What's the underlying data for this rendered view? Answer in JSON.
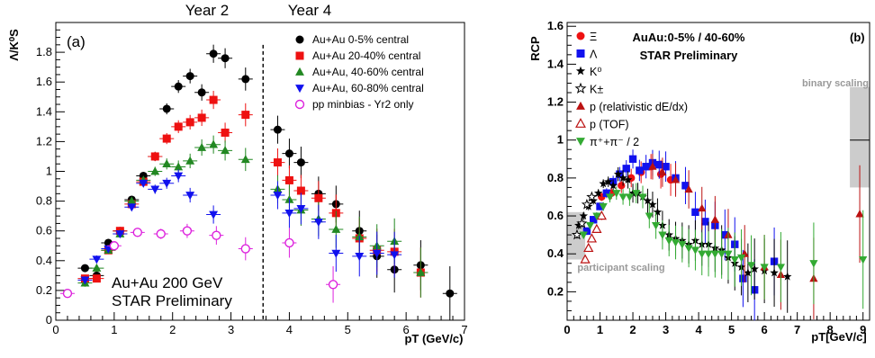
{
  "page": {
    "year2_label": "Year 2",
    "year4_label": "Year 4"
  },
  "chart_data": [
    {
      "type": "scatter",
      "panel_label": "(a)",
      "ylabel": "Λ/K⁰S",
      "xlabel": "pT (GeV/c)",
      "xlim": [
        0,
        7
      ],
      "ylim": [
        0,
        2
      ],
      "x_ticks": [
        "0",
        "1",
        "2",
        "3",
        "4",
        "5",
        "6",
        "7"
      ],
      "y_ticks": [
        "0",
        "0.2",
        "0.4",
        "0.6",
        "0.8",
        "1",
        "1.2",
        "1.4",
        "1.6",
        "1.8"
      ],
      "divider_x": 3.55,
      "grid": false,
      "legend_position": "top-right",
      "annotation_lines": [
        "Au+Au 200 GeV",
        "STAR Preliminary"
      ],
      "series": [
        {
          "name": "Au+Au 0-5% central",
          "color": "#000000",
          "marker": "circle",
          "x": [
            0.5,
            0.7,
            0.9,
            1.1,
            1.3,
            1.5,
            1.7,
            1.9,
            2.1,
            2.3,
            2.5,
            2.7,
            2.9,
            3.25,
            3.8,
            4.0,
            4.2,
            4.5,
            4.8,
            5.2,
            5.5,
            5.8,
            6.25,
            6.75
          ],
          "y": [
            0.35,
            0.3,
            0.52,
            0.6,
            0.81,
            0.97,
            1.1,
            1.42,
            1.57,
            1.64,
            1.53,
            1.79,
            1.76,
            1.62,
            1.28,
            1.12,
            1.06,
            0.85,
            0.78,
            0.6,
            0.43,
            0.34,
            0.37,
            0.18
          ]
        },
        {
          "name": "Au+Au 20-40% central",
          "color": "#ee1111",
          "marker": "square",
          "x": [
            0.5,
            0.7,
            0.9,
            1.1,
            1.3,
            1.5,
            1.7,
            1.9,
            2.1,
            2.3,
            2.5,
            2.7,
            2.9,
            3.25,
            3.8,
            4.0,
            4.2,
            4.5,
            4.8,
            5.2,
            5.5,
            5.8,
            6.25
          ],
          "y": [
            0.28,
            0.28,
            0.47,
            0.6,
            0.78,
            0.93,
            1.1,
            1.22,
            1.3,
            1.33,
            1.36,
            1.48,
            1.26,
            1.38,
            1.06,
            0.94,
            0.87,
            0.82,
            0.72,
            0.55,
            0.47,
            0.46,
            0.32
          ]
        },
        {
          "name": "Au+Au, 40-60% central",
          "color": "#228822",
          "marker": "triangle-up",
          "x": [
            0.5,
            0.7,
            0.9,
            1.1,
            1.3,
            1.5,
            1.7,
            1.9,
            2.1,
            2.3,
            2.5,
            2.7,
            2.9,
            3.25,
            3.8,
            4.0,
            4.2,
            4.5,
            4.8,
            5.2,
            5.5,
            5.8,
            6.25
          ],
          "y": [
            0.25,
            0.35,
            0.47,
            0.58,
            0.8,
            0.94,
            1.0,
            1.05,
            1.03,
            1.07,
            1.16,
            1.18,
            1.14,
            1.08,
            0.88,
            0.81,
            0.74,
            0.68,
            0.61,
            0.56,
            0.5,
            0.53,
            0.32
          ]
        },
        {
          "name": "Au+Au, 60-80% central",
          "color": "#1111ee",
          "marker": "triangle-down",
          "x": [
            0.5,
            0.7,
            0.9,
            1.1,
            1.3,
            1.5,
            1.7,
            1.9,
            2.1,
            2.3,
            2.7,
            3.8,
            4.0,
            4.2,
            4.5,
            4.8,
            5.2,
            5.5,
            5.8
          ],
          "y": [
            0.27,
            0.41,
            0.48,
            0.58,
            0.76,
            0.92,
            0.88,
            0.92,
            0.97,
            0.84,
            0.71,
            0.84,
            0.72,
            0.75,
            0.66,
            0.45,
            0.43,
            0.45,
            0.44
          ]
        },
        {
          "name": "pp minbias - Yr2 only",
          "color": "#dd22dd",
          "marker": "open-circle",
          "x": [
            0.2,
            1.0,
            1.4,
            1.8,
            2.25,
            2.75,
            3.25,
            4.0,
            4.75
          ],
          "y": [
            0.18,
            0.5,
            0.59,
            0.58,
            0.6,
            0.57,
            0.48,
            0.52,
            0.24
          ]
        }
      ]
    },
    {
      "type": "scatter",
      "panel_label": "(b)",
      "title": "AuAu:0-5% / 40-60%",
      "subtitle": "STAR Preliminary",
      "ylabel": "RCP",
      "xlabel": "pT[GeV/c]",
      "xlim": [
        0,
        9.2
      ],
      "ylim": [
        0.05,
        1.62
      ],
      "x_ticks": [
        "0",
        "1",
        "2",
        "3",
        "4",
        "5",
        "6",
        "7",
        "8",
        "9"
      ],
      "y_ticks": [
        "0.2",
        "0.4",
        "0.6",
        "0.8",
        "1",
        "1.2",
        "1.4",
        "1.6"
      ],
      "grid": false,
      "legend_position": "top-left",
      "binary_scaling_label": "binary scaling",
      "participant_scaling_label": "participant scaling",
      "series": [
        {
          "name": "Ξ",
          "color": "#ee1111",
          "marker": "circle",
          "x": [
            1.05,
            1.35,
            1.65,
            1.95,
            2.25,
            2.55,
            2.85,
            3.15
          ],
          "y": [
            0.7,
            0.72,
            0.76,
            0.8,
            0.83,
            0.86,
            0.82,
            0.79
          ]
        },
        {
          "name": "Λ",
          "color": "#1111ee",
          "marker": "square",
          "x": [
            0.6,
            0.8,
            1.0,
            1.2,
            1.4,
            1.6,
            1.8,
            2.0,
            2.2,
            2.4,
            2.6,
            2.8,
            3.0,
            3.3,
            3.6,
            3.9,
            4.2,
            4.5,
            4.8,
            5.1,
            5.35,
            5.7,
            6.3
          ],
          "y": [
            0.52,
            0.58,
            0.65,
            0.72,
            0.78,
            0.82,
            0.85,
            0.9,
            0.84,
            0.86,
            0.88,
            0.87,
            0.86,
            0.8,
            0.76,
            0.62,
            0.57,
            0.55,
            0.5,
            0.45,
            0.27,
            0.21,
            0.36
          ]
        },
        {
          "name": "K⁰",
          "color": "#000000",
          "marker": "star",
          "x": [
            0.35,
            0.5,
            0.65,
            0.8,
            0.95,
            1.1,
            1.25,
            1.4,
            1.55,
            1.7,
            1.85,
            2.0,
            2.15,
            2.3,
            2.45,
            2.6,
            2.75,
            2.9,
            3.1,
            3.3,
            3.5,
            3.7,
            3.9,
            4.1,
            4.3,
            4.5,
            4.7,
            4.9,
            5.1,
            5.3,
            5.5,
            5.7,
            6.0,
            6.3,
            6.7
          ],
          "y": [
            0.55,
            0.6,
            0.65,
            0.68,
            0.72,
            0.77,
            0.78,
            0.76,
            0.82,
            0.8,
            0.79,
            0.72,
            0.72,
            0.7,
            0.68,
            0.66,
            0.62,
            0.55,
            0.5,
            0.48,
            0.47,
            0.45,
            0.47,
            0.45,
            0.45,
            0.43,
            0.42,
            0.38,
            0.35,
            0.33,
            0.3,
            0.32,
            0.31,
            0.3,
            0.28
          ]
        },
        {
          "name": "K±",
          "color": "#000000",
          "marker": "open-star",
          "x": [
            0.3,
            0.45,
            0.6,
            0.75
          ],
          "y": [
            0.5,
            0.56,
            0.66,
            0.7
          ]
        },
        {
          "name": "p (relativistic dE/dx)",
          "color": "#bb1111",
          "marker": "triangle-up",
          "x": [
            2.6,
            2.9,
            3.3,
            3.7,
            4.1,
            4.5,
            4.9,
            5.4,
            6.0,
            6.5,
            7.5,
            8.9
          ],
          "y": [
            0.86,
            0.83,
            0.79,
            0.74,
            0.64,
            0.58,
            0.5,
            0.4,
            0.33,
            0.29,
            0.27,
            0.61
          ]
        },
        {
          "name": "p (TOF)",
          "color": "#bb1111",
          "marker": "open-triangle-up",
          "x": [
            0.55,
            0.65,
            0.75,
            0.9,
            1.05
          ],
          "y": [
            0.37,
            0.43,
            0.48,
            0.53,
            0.6
          ]
        },
        {
          "name": "π⁺+π⁻ / 2",
          "color": "#33aa33",
          "marker": "triangle-down",
          "x": [
            0.5,
            0.7,
            0.9,
            1.1,
            1.3,
            1.5,
            1.7,
            1.9,
            2.1,
            2.3,
            2.5,
            2.7,
            2.9,
            3.1,
            3.3,
            3.5,
            3.7,
            3.9,
            4.1,
            4.3,
            4.5,
            4.7,
            4.9,
            5.1,
            5.3,
            5.6,
            6.0,
            6.5,
            7.5,
            9.0
          ],
          "y": [
            0.5,
            0.55,
            0.6,
            0.65,
            0.7,
            0.72,
            0.7,
            0.7,
            0.72,
            0.7,
            0.6,
            0.55,
            0.5,
            0.47,
            0.46,
            0.45,
            0.43,
            0.42,
            0.4,
            0.4,
            0.4,
            0.4,
            0.4,
            0.37,
            0.38,
            0.34,
            0.33,
            0.33,
            0.35,
            0.37
          ]
        }
      ]
    }
  ]
}
